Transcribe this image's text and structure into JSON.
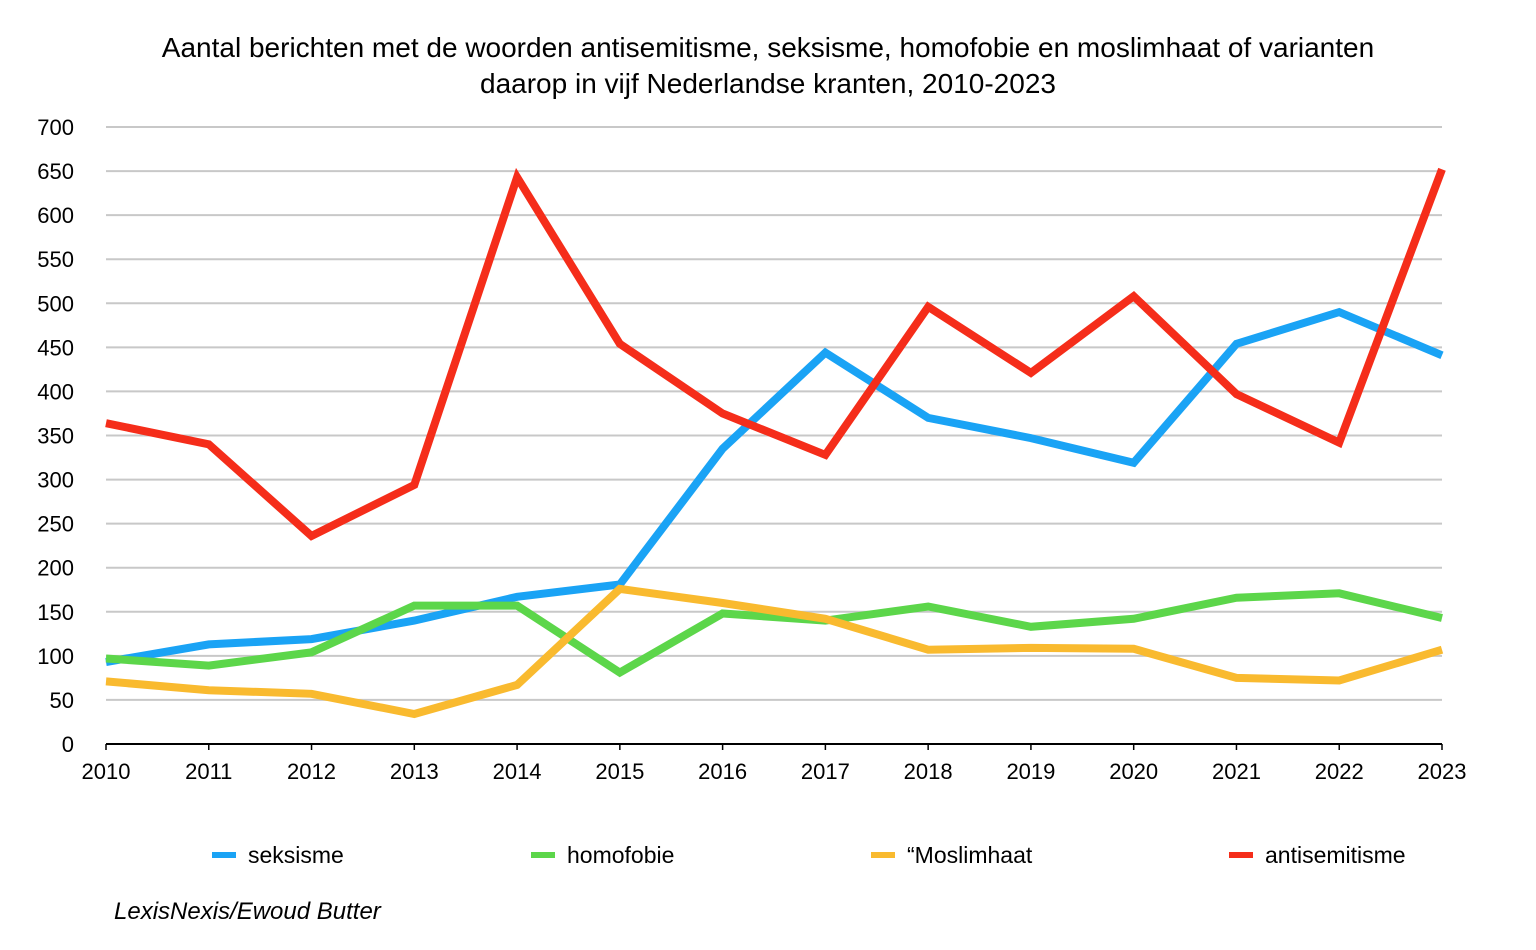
{
  "chart_data": {
    "type": "line",
    "title_lines": [
      "Aantal berichten met de woorden antisemitisme, seksisme, homofobie en moslimhaat of varianten",
      "daarop in vijf Nederlandse kranten, 2010-2023"
    ],
    "x": [
      "2010",
      "2011",
      "2012",
      "2013",
      "2014",
      "2015",
      "2016",
      "2017",
      "2018",
      "2019",
      "2020",
      "2021",
      "2022",
      "2023"
    ],
    "ylim": [
      0,
      700
    ],
    "yticks": [
      0,
      50,
      100,
      150,
      200,
      250,
      300,
      350,
      400,
      450,
      500,
      550,
      600,
      650,
      700
    ],
    "grid": true,
    "legend_position": "bottom",
    "series": [
      {
        "name": "seksisme",
        "color": "#1AA3F5",
        "values": [
          93,
          113,
          119,
          140,
          167,
          181,
          335,
          444,
          370,
          347,
          319,
          454,
          490,
          441
        ]
      },
      {
        "name": "homofobie",
        "color": "#5CD64A",
        "values": [
          97,
          89,
          104,
          157,
          157,
          81,
          148,
          140,
          156,
          133,
          142,
          166,
          171,
          143
        ]
      },
      {
        "name": "“Moslimhaat",
        "color": "#F9BA2F",
        "values": [
          71,
          61,
          57,
          34,
          67,
          176,
          160,
          142,
          107,
          109,
          108,
          75,
          72,
          107
        ]
      },
      {
        "name": "antisemitisme",
        "color": "#F52D1A",
        "values": [
          364,
          340,
          236,
          294,
          643,
          454,
          375,
          328,
          496,
          421,
          508,
          397,
          342,
          652
        ]
      }
    ]
  },
  "source_note": "LexisNexis/Ewoud Butter"
}
